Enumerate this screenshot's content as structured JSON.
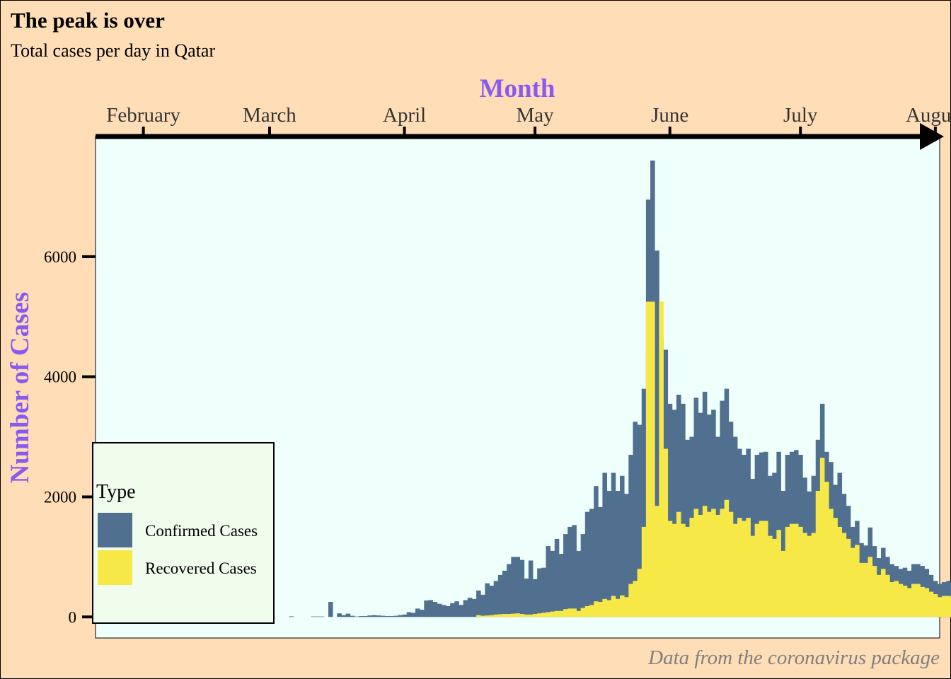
{
  "chart_data": {
    "type": "bar",
    "stacking": "overlay",
    "title": "The peak is over",
    "subtitle": "Total cases per day in Qatar",
    "caption": "Data from the coronavirus package",
    "xlabel": "Month",
    "ylabel": "Number of Cases",
    "x_axis_position": "top",
    "x_start_date": "2020-01-22",
    "x_end_date": "2020-07-31",
    "xlim": [
      "2020-01-21",
      "2020-08-02"
    ],
    "ylim": [
      -350,
      8000
    ],
    "x_ticks": [
      {
        "date": "2020-02-01",
        "label": "February"
      },
      {
        "date": "2020-03-01",
        "label": "March"
      },
      {
        "date": "2020-04-01",
        "label": "April"
      },
      {
        "date": "2020-05-01",
        "label": "May"
      },
      {
        "date": "2020-06-01",
        "label": "June"
      },
      {
        "date": "2020-07-01",
        "label": "July"
      },
      {
        "date": "2020-08-01",
        "label": "August"
      }
    ],
    "y_ticks": [
      {
        "value": 0,
        "label": "0"
      },
      {
        "value": 2000,
        "label": "2000"
      },
      {
        "value": 4000,
        "label": "4000"
      },
      {
        "value": 6000,
        "label": "6000"
      }
    ],
    "grid": false,
    "legend": {
      "title": "Type",
      "position": "bottom-left",
      "entries": [
        {
          "name": "Confirmed Cases",
          "color": "#51708F"
        },
        {
          "name": "Recovered Cases",
          "color": "#F6E947"
        }
      ]
    },
    "series": [
      {
        "name": "Confirmed Cases",
        "color": "#51708F",
        "values": [
          0,
          0,
          0,
          0,
          0,
          0,
          0,
          0,
          0,
          0,
          0,
          0,
          0,
          0,
          0,
          0,
          0,
          0,
          0,
          0,
          0,
          0,
          0,
          0,
          0,
          0,
          0,
          0,
          0,
          0,
          0,
          0,
          0,
          0,
          0,
          0,
          0,
          0,
          0,
          0,
          0,
          0,
          0,
          0,
          10,
          0,
          0,
          0,
          0,
          8,
          8,
          8,
          0,
          250,
          0,
          60,
          30,
          55,
          20,
          8,
          15,
          15,
          25,
          30,
          25,
          20,
          15,
          15,
          20,
          30,
          40,
          80,
          70,
          140,
          120,
          275,
          280,
          250,
          220,
          200,
          180,
          230,
          260,
          200,
          280,
          320,
          300,
          440,
          370,
          560,
          520,
          600,
          700,
          770,
          880,
          1000,
          1000,
          950,
          640,
          940,
          630,
          810,
          820,
          1180,
          1100,
          1300,
          1050,
          1380,
          1500,
          1530,
          1100,
          1380,
          1750,
          1800,
          2180,
          1830,
          2400,
          2100,
          2400,
          2100,
          2350,
          2050,
          2700,
          3250,
          3200,
          3800,
          6950,
          7600,
          6100,
          4650,
          4450,
          3550,
          3450,
          3700,
          3550,
          2950,
          3000,
          3650,
          3400,
          3750,
          3370,
          3450,
          3000,
          3600,
          3800,
          3250,
          3000,
          2800,
          2700,
          2800,
          2300,
          2700,
          2740,
          2750,
          2350,
          2400,
          2750,
          2100,
          2700,
          2750,
          2780,
          2700,
          2320,
          2090,
          2350,
          2950,
          3550,
          2750,
          2580,
          2200,
          2400,
          2050,
          1850,
          1500,
          1600,
          1230,
          1190,
          1490,
          1180,
          980,
          1150,
          1000,
          880,
          850,
          800,
          820,
          770,
          880,
          880,
          850,
          800,
          700,
          600,
          550,
          580,
          600,
          550,
          600,
          490,
          450
        ]
      },
      {
        "name": "Recovered Cases",
        "color": "#F6E947",
        "values": [
          0,
          0,
          0,
          0,
          0,
          0,
          0,
          0,
          0,
          0,
          0,
          0,
          0,
          0,
          0,
          0,
          0,
          0,
          0,
          0,
          0,
          0,
          0,
          0,
          0,
          0,
          0,
          0,
          0,
          0,
          0,
          0,
          0,
          0,
          0,
          0,
          0,
          0,
          0,
          0,
          0,
          0,
          0,
          0,
          0,
          0,
          0,
          0,
          0,
          0,
          0,
          0,
          0,
          0,
          0,
          0,
          0,
          0,
          0,
          0,
          0,
          0,
          0,
          0,
          0,
          0,
          0,
          0,
          0,
          0,
          0,
          0,
          0,
          0,
          0,
          0,
          0,
          0,
          0,
          0,
          0,
          0,
          0,
          0,
          0,
          0,
          0,
          30,
          20,
          25,
          30,
          40,
          45,
          50,
          50,
          55,
          60,
          50,
          40,
          40,
          50,
          60,
          70,
          80,
          90,
          100,
          100,
          130,
          140,
          140,
          100,
          150,
          180,
          200,
          260,
          250,
          300,
          280,
          350,
          300,
          360,
          330,
          550,
          600,
          800,
          1500,
          5250,
          5250,
          1850,
          5250,
          2800,
          1600,
          1550,
          1750,
          1550,
          1500,
          1650,
          1800,
          1700,
          1850,
          1750,
          1800,
          1700,
          1800,
          1950,
          1750,
          1550,
          1650,
          1600,
          1650,
          1350,
          1550,
          1600,
          1600,
          1350,
          1300,
          1450,
          1100,
          1500,
          1550,
          1550,
          1500,
          1400,
          1350,
          1400,
          2100,
          2650,
          2250,
          1800,
          1650,
          1500,
          1400,
          1300,
          1150,
          1200,
          900,
          900,
          1000,
          850,
          700,
          800,
          700,
          580,
          600,
          550,
          520,
          480,
          550,
          550,
          500,
          480,
          420,
          380,
          330,
          350,
          350,
          310,
          320,
          300,
          260
        ]
      }
    ]
  }
}
